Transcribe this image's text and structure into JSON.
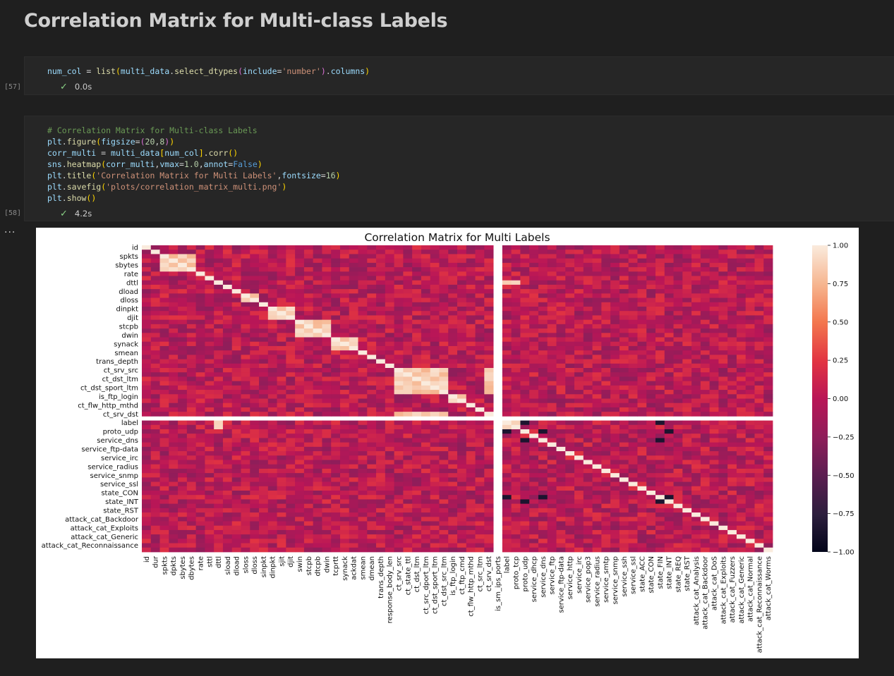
{
  "heading": "Correlation Matrix for Multi-class Labels",
  "cells": [
    {
      "execution_count": "[57]",
      "status_time": "0.0s",
      "code_lines": [
        [
          [
            "var",
            "num_col"
          ],
          [
            "plain",
            " = "
          ],
          [
            "fn",
            "list"
          ],
          [
            "p1",
            "("
          ],
          [
            "var",
            "multi_data"
          ],
          [
            "plain",
            "."
          ],
          [
            "fn",
            "select_dtypes"
          ],
          [
            "p2",
            "("
          ],
          [
            "var",
            "include"
          ],
          [
            "plain",
            "="
          ],
          [
            "str",
            "'number'"
          ],
          [
            "p2",
            ")"
          ],
          [
            "plain",
            "."
          ],
          [
            "var",
            "columns"
          ],
          [
            "p1",
            ")"
          ]
        ]
      ]
    },
    {
      "execution_count": "[58]",
      "status_time": "4.2s",
      "code_lines": [
        [
          [
            "cm",
            "# Correlation Matrix for Multi-class Labels"
          ]
        ],
        [
          [
            "var",
            "plt"
          ],
          [
            "plain",
            "."
          ],
          [
            "fn",
            "figure"
          ],
          [
            "p1",
            "("
          ],
          [
            "var",
            "figsize"
          ],
          [
            "plain",
            "="
          ],
          [
            "p2",
            "("
          ],
          [
            "num",
            "20"
          ],
          [
            "plain",
            ","
          ],
          [
            "num",
            "8"
          ],
          [
            "p2",
            ")"
          ],
          [
            "p1",
            ")"
          ]
        ],
        [
          [
            "var",
            "corr_multi"
          ],
          [
            "plain",
            " = "
          ],
          [
            "var",
            "multi_data"
          ],
          [
            "p1",
            "["
          ],
          [
            "var",
            "num_col"
          ],
          [
            "p1",
            "]"
          ],
          [
            "plain",
            "."
          ],
          [
            "fn",
            "corr"
          ],
          [
            "p1",
            "()"
          ]
        ],
        [
          [
            "var",
            "sns"
          ],
          [
            "plain",
            "."
          ],
          [
            "fn",
            "heatmap"
          ],
          [
            "p1",
            "("
          ],
          [
            "var",
            "corr_multi"
          ],
          [
            "plain",
            ","
          ],
          [
            "var",
            "vmax"
          ],
          [
            "plain",
            "="
          ],
          [
            "num",
            "1.0"
          ],
          [
            "plain",
            ","
          ],
          [
            "var",
            "annot"
          ],
          [
            "plain",
            "="
          ],
          [
            "kw",
            "False"
          ],
          [
            "p1",
            ")"
          ]
        ],
        [
          [
            "var",
            "plt"
          ],
          [
            "plain",
            "."
          ],
          [
            "fn",
            "title"
          ],
          [
            "p1",
            "("
          ],
          [
            "str",
            "'Correlation Matrix for Multi Labels'"
          ],
          [
            "plain",
            ","
          ],
          [
            "var",
            "fontsize"
          ],
          [
            "plain",
            "="
          ],
          [
            "num",
            "16"
          ],
          [
            "p1",
            ")"
          ]
        ],
        [
          [
            "var",
            "plt"
          ],
          [
            "plain",
            "."
          ],
          [
            "fn",
            "savefig"
          ],
          [
            "p1",
            "("
          ],
          [
            "str",
            "'plots/correlation_matrix_multi.png'"
          ],
          [
            "p1",
            ")"
          ]
        ],
        [
          [
            "var",
            "plt"
          ],
          [
            "plain",
            "."
          ],
          [
            "fn",
            "show"
          ],
          [
            "p1",
            "()"
          ]
        ]
      ]
    }
  ],
  "colors": {
    "var": "#9cdcfe",
    "fn": "#dcdcaa",
    "str": "#ce9178",
    "num": "#b5cea8",
    "kw": "#569cd6",
    "cm": "#6a9955",
    "p1": "#ffd700",
    "p2": "#da70d6",
    "p3": "#179fff",
    "plain": "#d4d4d4"
  },
  "chart_data": {
    "type": "heatmap",
    "title": "Correlation Matrix for Multi Labels",
    "row_labels": [
      "id",
      "spkts",
      "sbytes",
      "rate",
      "dttl",
      "dload",
      "dloss",
      "dinpkt",
      "djit",
      "stcpb",
      "dwin",
      "synack",
      "smean",
      "trans_depth",
      "ct_srv_src",
      "ct_dst_ltm",
      "ct_dst_sport_ltm",
      "is_ftp_login",
      "ct_flw_http_mthd",
      "ct_srv_dst",
      "label",
      "proto_udp",
      "service_dns",
      "service_ftp-data",
      "service_irc",
      "service_radius",
      "service_snmp",
      "service_ssl",
      "state_CON",
      "state_INT",
      "state_RST",
      "attack_cat_Backdoor",
      "attack_cat_Exploits",
      "attack_cat_Generic",
      "attack_cat_Reconnaissance"
    ],
    "col_labels": [
      "id",
      "dur",
      "spkts",
      "dpkts",
      "sbytes",
      "dbytes",
      "rate",
      "sttl",
      "dttl",
      "sload",
      "dload",
      "sloss",
      "dloss",
      "sinpkt",
      "dinpkt",
      "sjit",
      "djit",
      "swin",
      "stcpb",
      "dtcpb",
      "dwin",
      "tcprtt",
      "synack",
      "ackdat",
      "smean",
      "dmean",
      "trans_depth",
      "response_body_len",
      "ct_srv_src",
      "ct_state_ttl",
      "ct_dst_ltm",
      "ct_src_dport_ltm",
      "ct_dst_sport_ltm",
      "ct_dst_src_ltm",
      "is_ftp_login",
      "ct_ftp_cmd",
      "ct_flw_http_mthd",
      "ct_src_ltm",
      "ct_srv_dst",
      "is_sm_ips_ports",
      "label",
      "proto_tcp",
      "proto_udp",
      "service_dhcp",
      "service_dns",
      "service_ftp",
      "service_ftp-data",
      "service_http",
      "service_irc",
      "service_pop3",
      "service_radius",
      "service_smtp",
      "service_snmp",
      "service_ssh",
      "service_ssl",
      "state_ACC",
      "state_CON",
      "state_FIN",
      "state_INT",
      "state_REQ",
      "state_RST",
      "attack_cat_Analysis",
      "attack_cat_Backdoor",
      "attack_cat_DoS",
      "attack_cat_Exploits",
      "attack_cat_Fuzzers",
      "attack_cat_Generic",
      "attack_cat_Normal",
      "attack_cat_Reconnaissance",
      "attack_cat_Worms"
    ],
    "colorbar": {
      "vmin": -1.0,
      "vmax": 1.0,
      "ticks": [
        "1.00",
        "0.75",
        "0.50",
        "0.25",
        "0.00",
        "−0.25",
        "−0.50",
        "−0.75",
        "−1.00"
      ]
    },
    "constant_index": 39,
    "high_groups": [
      [
        2,
        3,
        4,
        5
      ],
      [
        11,
        12
      ],
      [
        14,
        15,
        16
      ],
      [
        17,
        18,
        19,
        20
      ],
      [
        21,
        22,
        23
      ],
      [
        28,
        29,
        30,
        31,
        32,
        33,
        38
      ],
      [
        34,
        35
      ],
      [
        8,
        40,
        41
      ]
    ],
    "low_groups": [
      [
        40,
        44,
        58
      ],
      [
        42,
        57
      ]
    ]
  }
}
